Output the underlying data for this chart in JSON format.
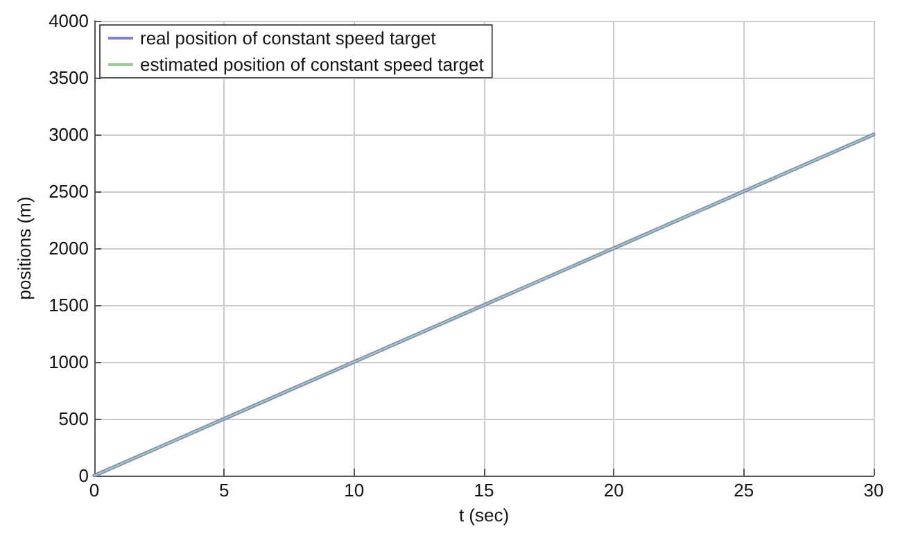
{
  "chart_data": {
    "type": "line",
    "xlabel": "t (sec)",
    "ylabel": "positions (m)",
    "x": [
      0,
      5,
      10,
      15,
      20,
      25,
      30
    ],
    "series": [
      {
        "name": "real position of constant speed target",
        "color": "#8080d0",
        "values": [
          0,
          500,
          1000,
          1500,
          2000,
          2500,
          3000
        ]
      },
      {
        "name": "estimated position of constant speed target",
        "color": "#9ccf9c",
        "values": [
          0,
          500,
          1000,
          1500,
          2000,
          2500,
          3000
        ]
      }
    ],
    "xlim": [
      0,
      30
    ],
    "xticks": [
      0,
      5,
      10,
      15,
      20,
      25,
      30
    ],
    "ylim": [
      0,
      4000
    ],
    "yticks": [
      0,
      500,
      1000,
      1500,
      2000,
      2500,
      3000,
      3500,
      4000
    ],
    "grid": true,
    "legend": "top left",
    "marker": "none",
    "line_style": "solid"
  }
}
